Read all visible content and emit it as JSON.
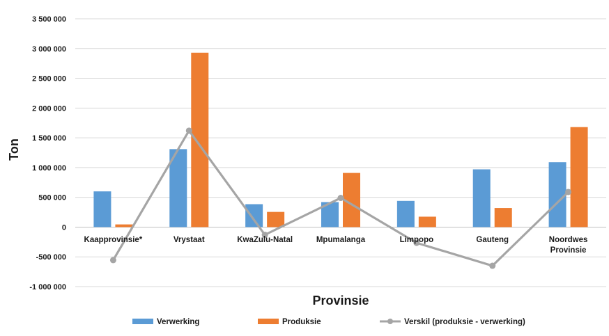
{
  "chart_data": {
    "type": "bar",
    "title": "",
    "xlabel": "Provinsie",
    "ylabel": "Ton",
    "ylim": [
      -1000000,
      3500000
    ],
    "yticks": [
      {
        "value": 3500000,
        "label": "3 500 000"
      },
      {
        "value": 3000000,
        "label": "3 000 000"
      },
      {
        "value": 2500000,
        "label": "2 500 000"
      },
      {
        "value": 2000000,
        "label": "2 000 000"
      },
      {
        "value": 1500000,
        "label": "1 500 000"
      },
      {
        "value": 1000000,
        "label": "1 000 000"
      },
      {
        "value": 500000,
        "label": "500 000"
      },
      {
        "value": 0,
        "label": "0"
      },
      {
        "value": -500000,
        "label": "-500 000"
      },
      {
        "value": -1000000,
        "label": "-1 000 000"
      }
    ],
    "grid": true,
    "legend_position": "bottom",
    "categories": [
      [
        "Kaapprovinsie*"
      ],
      [
        "Vrystaat"
      ],
      [
        "KwaZulu-Natal"
      ],
      [
        "Mpumalanga"
      ],
      [
        "Limpopo"
      ],
      [
        "Gauteng"
      ],
      [
        "Noordwes",
        "Provinsie"
      ]
    ],
    "series": [
      {
        "name": "Verwerking",
        "kind": "bar",
        "color": "#5b9bd5",
        "values": [
          600000,
          1310000,
          385000,
          420000,
          440000,
          970000,
          1090000
        ]
      },
      {
        "name": "Produksie",
        "kind": "bar",
        "color": "#ed7d31",
        "values": [
          45000,
          2930000,
          255000,
          910000,
          175000,
          320000,
          1680000
        ]
      },
      {
        "name": "Verskil (produksie - verwerking)",
        "kind": "line",
        "color": "#a5a5a5",
        "values": [
          -555000,
          1620000,
          -130000,
          490000,
          -265000,
          -650000,
          590000
        ]
      }
    ]
  }
}
